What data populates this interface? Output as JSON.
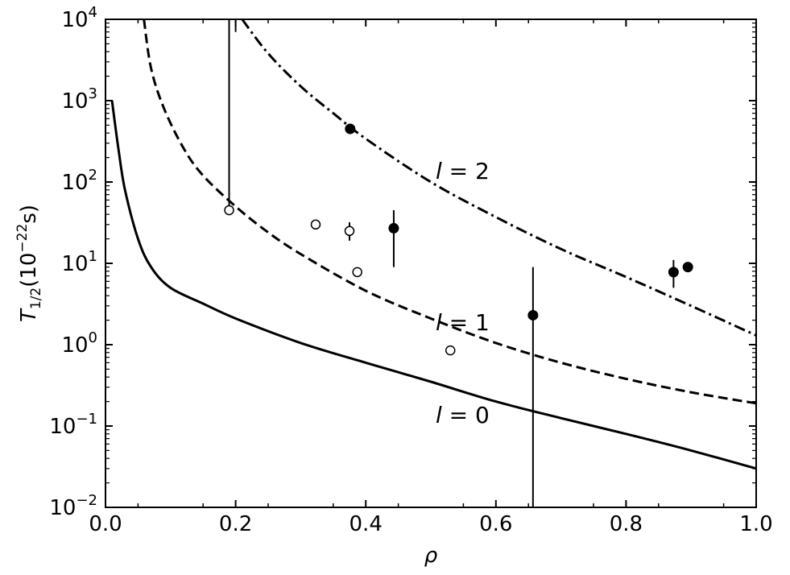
{
  "chart_data": {
    "type": "line",
    "title": "",
    "xlabel": "ρ",
    "ylabel": {
      "base": "T",
      "sub": "1/2",
      "unit_prefix": "(10",
      "unit_exp": "−22",
      "unit_suffix": "s)"
    },
    "xlim": [
      0.0,
      1.0
    ],
    "ylim": [
      0.01,
      10000
    ],
    "yscale": "log",
    "grid": false,
    "x_ticks": [
      "0.0",
      "0.2",
      "0.4",
      "0.6",
      "0.8",
      "1.0"
    ],
    "y_ticks": [
      {
        "value": 0.01,
        "base": "10",
        "exp": "−2"
      },
      {
        "value": 0.1,
        "base": "10",
        "exp": "−1"
      },
      {
        "value": 1,
        "base": "10",
        "exp": "0"
      },
      {
        "value": 10,
        "base": "10",
        "exp": "1"
      },
      {
        "value": 100,
        "base": "10",
        "exp": "2"
      },
      {
        "value": 1000,
        "base": "10",
        "exp": "3"
      },
      {
        "value": 10000,
        "base": "10",
        "exp": "4"
      }
    ],
    "series": [
      {
        "label_text": "l = 0",
        "label_pos": [
          0.5,
          0.11
        ],
        "style": "solid",
        "x": [
          0.01,
          0.02,
          0.03,
          0.05,
          0.07,
          0.1,
          0.15,
          0.2,
          0.3,
          0.4,
          0.5,
          0.6,
          0.7,
          0.8,
          0.9,
          1.0
        ],
        "y": [
          1000,
          250,
          80,
          20,
          9,
          5,
          3.2,
          2.1,
          1.05,
          0.6,
          0.35,
          0.2,
          0.125,
          0.08,
          0.05,
          0.03
        ]
      },
      {
        "label_text": "l = 1",
        "label_pos": [
          0.5,
          1.5
        ],
        "style": "dashed",
        "x": [
          0.059,
          0.07,
          0.09,
          0.12,
          0.15,
          0.2,
          0.25,
          0.3,
          0.4,
          0.5,
          0.6,
          0.7,
          0.8,
          0.9,
          1.0
        ],
        "y": [
          10000,
          2500,
          800,
          260,
          120,
          50,
          24,
          13,
          4.6,
          2.1,
          1.05,
          0.6,
          0.38,
          0.26,
          0.19
        ]
      },
      {
        "label_text": "l = 2",
        "label_pos": [
          0.5,
          110
        ],
        "style": "dashdot",
        "x": [
          0.21,
          0.25,
          0.3,
          0.35,
          0.4,
          0.5,
          0.6,
          0.7,
          0.8,
          0.9,
          1.0
        ],
        "y": [
          10000,
          3800,
          1500,
          700,
          340,
          100,
          37,
          15,
          6.8,
          3.0,
          1.3
        ]
      }
    ],
    "points": [
      {
        "x": 0.19,
        "y": 45,
        "filled": false,
        "err_low": 45,
        "err_high": 10000
      },
      {
        "x": 0.323,
        "y": 30,
        "filled": false,
        "err_low": 27,
        "err_high": 34
      },
      {
        "x": 0.375,
        "y": 25,
        "filled": false,
        "err_low": 19,
        "err_high": 32
      },
      {
        "x": 0.387,
        "y": 7.8,
        "filled": false
      },
      {
        "x": 0.53,
        "y": 0.85,
        "filled": false
      },
      {
        "x": 0.376,
        "y": 450,
        "filled": true
      },
      {
        "x": 0.443,
        "y": 27,
        "filled": true,
        "err_low": 9,
        "err_high": 45
      },
      {
        "x": 0.657,
        "y": 2.3,
        "filled": true,
        "err_low": 0.01,
        "err_high": 9
      },
      {
        "x": 0.873,
        "y": 7.8,
        "filled": true,
        "err_low": 5,
        "err_high": 11
      },
      {
        "x": 0.895,
        "y": 9.0,
        "filled": true
      }
    ],
    "stray_tick": {
      "x": 0.2,
      "y_from": 10000,
      "y_to": 7000
    }
  }
}
